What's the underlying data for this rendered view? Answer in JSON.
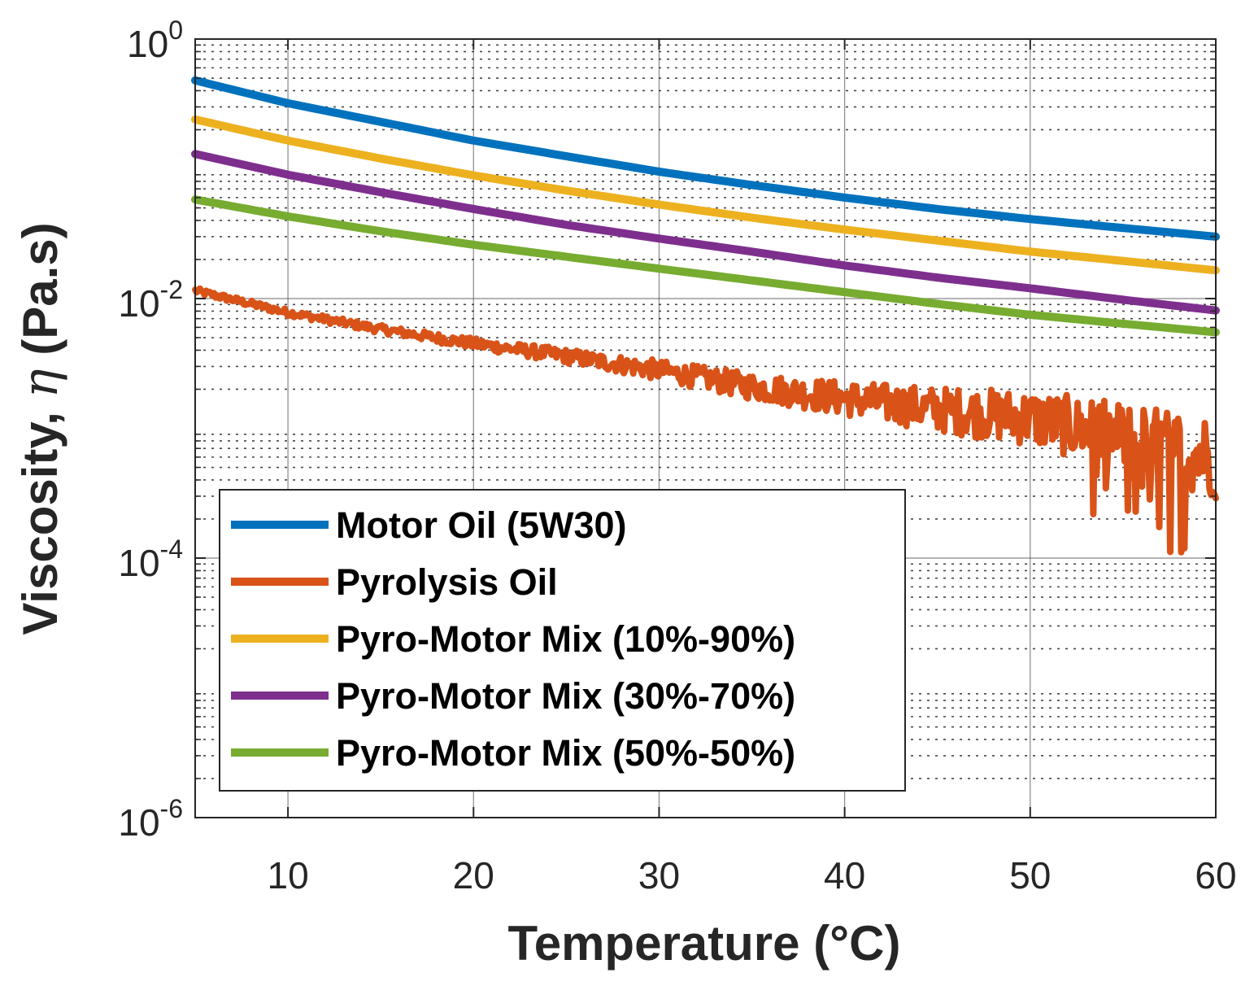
{
  "chart_data": {
    "type": "line",
    "title": "",
    "xlabel": "Temperature (°C)",
    "ylabel_main": "Viscosity, ",
    "ylabel_symbol": "η",
    "ylabel_unit": " (Pa.s)",
    "xlim": [
      5,
      60
    ],
    "ylim": [
      1e-06,
      1
    ],
    "yscale": "log",
    "grid": true,
    "legend_position": "bottom-left",
    "x_ticks": [
      10,
      20,
      30,
      40,
      50,
      60
    ],
    "x_tick_labels": [
      "10",
      "20",
      "30",
      "40",
      "50",
      "60"
    ],
    "y_ticks": [
      {
        "value": 1,
        "base": "10",
        "exp": "0"
      },
      {
        "value": 0.01,
        "base": "10",
        "exp": "-2"
      },
      {
        "value": 0.0001,
        "base": "10",
        "exp": "-4"
      },
      {
        "value": 1e-06,
        "base": "10",
        "exp": "-6"
      }
    ],
    "series": [
      {
        "name": "Motor Oil (5W30)",
        "color": "#0072BD",
        "noise": 0,
        "x": [
          5,
          10,
          15,
          20,
          25,
          30,
          35,
          40,
          45,
          50,
          55,
          60
        ],
        "y": [
          0.48,
          0.32,
          0.23,
          0.165,
          0.125,
          0.095,
          0.075,
          0.06,
          0.049,
          0.041,
          0.035,
          0.03
        ]
      },
      {
        "name": "Pyrolysis Oil",
        "color": "#D95319",
        "noise": 1,
        "x": [
          5,
          10,
          15,
          20,
          25,
          30,
          35,
          40,
          45,
          50,
          55,
          60
        ],
        "y": [
          0.0115,
          0.0078,
          0.0058,
          0.0045,
          0.0036,
          0.0028,
          0.0021,
          0.0017,
          0.0014,
          0.0012,
          0.00085,
          0.0006
        ]
      },
      {
        "name": "Pyro-Motor Mix (10%-90%)",
        "color": "#EDB120",
        "noise": 0,
        "x": [
          5,
          10,
          15,
          20,
          25,
          30,
          35,
          40,
          45,
          50,
          55,
          60
        ],
        "y": [
          0.24,
          0.165,
          0.12,
          0.089,
          0.068,
          0.053,
          0.042,
          0.034,
          0.028,
          0.023,
          0.0195,
          0.0165
        ]
      },
      {
        "name": "Pyro-Motor Mix (30%-70%)",
        "color": "#7E2F8E",
        "noise": 0,
        "x": [
          5,
          10,
          15,
          20,
          25,
          30,
          35,
          40,
          45,
          50,
          55,
          60
        ],
        "y": [
          0.13,
          0.09,
          0.066,
          0.049,
          0.037,
          0.029,
          0.023,
          0.018,
          0.0145,
          0.012,
          0.0098,
          0.0081
        ]
      },
      {
        "name": "Pyro-Motor Mix (50%-50%)",
        "color": "#77AC30",
        "noise": 0,
        "x": [
          5,
          10,
          15,
          20,
          25,
          30,
          35,
          40,
          45,
          50,
          55,
          60
        ],
        "y": [
          0.058,
          0.043,
          0.033,
          0.026,
          0.021,
          0.017,
          0.0138,
          0.0112,
          0.0091,
          0.0075,
          0.0064,
          0.0055
        ]
      }
    ]
  }
}
